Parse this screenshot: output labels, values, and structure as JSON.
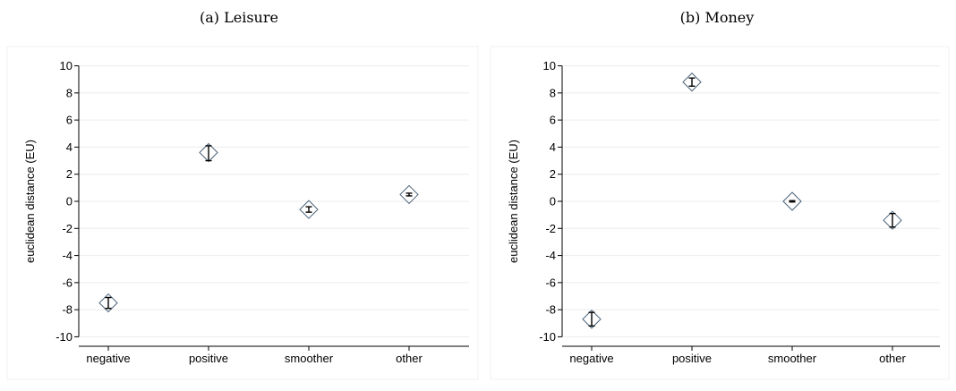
{
  "chart_data": [
    {
      "type": "scatter",
      "title": "(a) Leisure",
      "ylabel": "euclidean distance (EU)",
      "xlabel": "",
      "categories": [
        "negative",
        "positive",
        "smoother",
        "other"
      ],
      "values": [
        -7.5,
        3.6,
        -0.6,
        0.5
      ],
      "ci_low": [
        -7.9,
        3.0,
        -0.8,
        0.4
      ],
      "ci_high": [
        -7.1,
        4.1,
        -0.4,
        0.6
      ],
      "ylim": [
        -10.5,
        10.5
      ],
      "yticks": [
        -10,
        -8,
        -6,
        -4,
        -2,
        0,
        2,
        4,
        6,
        8,
        10
      ],
      "grid": true,
      "marker": "diamond",
      "colors": {
        "marker": "#4a6278",
        "ci": "#000000",
        "grid": "#ececec",
        "axis": "#000000"
      }
    },
    {
      "type": "scatter",
      "title": "(b) Money",
      "ylabel": "euclidean distance (EU)",
      "xlabel": "",
      "categories": [
        "negative",
        "positive",
        "smoother",
        "other"
      ],
      "values": [
        -8.7,
        8.8,
        0.0,
        -1.4
      ],
      "ci_low": [
        -9.2,
        8.5,
        -0.05,
        -1.9
      ],
      "ci_high": [
        -8.2,
        9.1,
        0.05,
        -0.9
      ],
      "ylim": [
        -10.5,
        10.5
      ],
      "yticks": [
        -10,
        -8,
        -6,
        -4,
        -2,
        0,
        2,
        4,
        6,
        8,
        10
      ],
      "grid": true,
      "marker": "diamond",
      "colors": {
        "marker": "#4a6278",
        "ci": "#000000",
        "grid": "#ececec",
        "axis": "#000000"
      }
    }
  ]
}
